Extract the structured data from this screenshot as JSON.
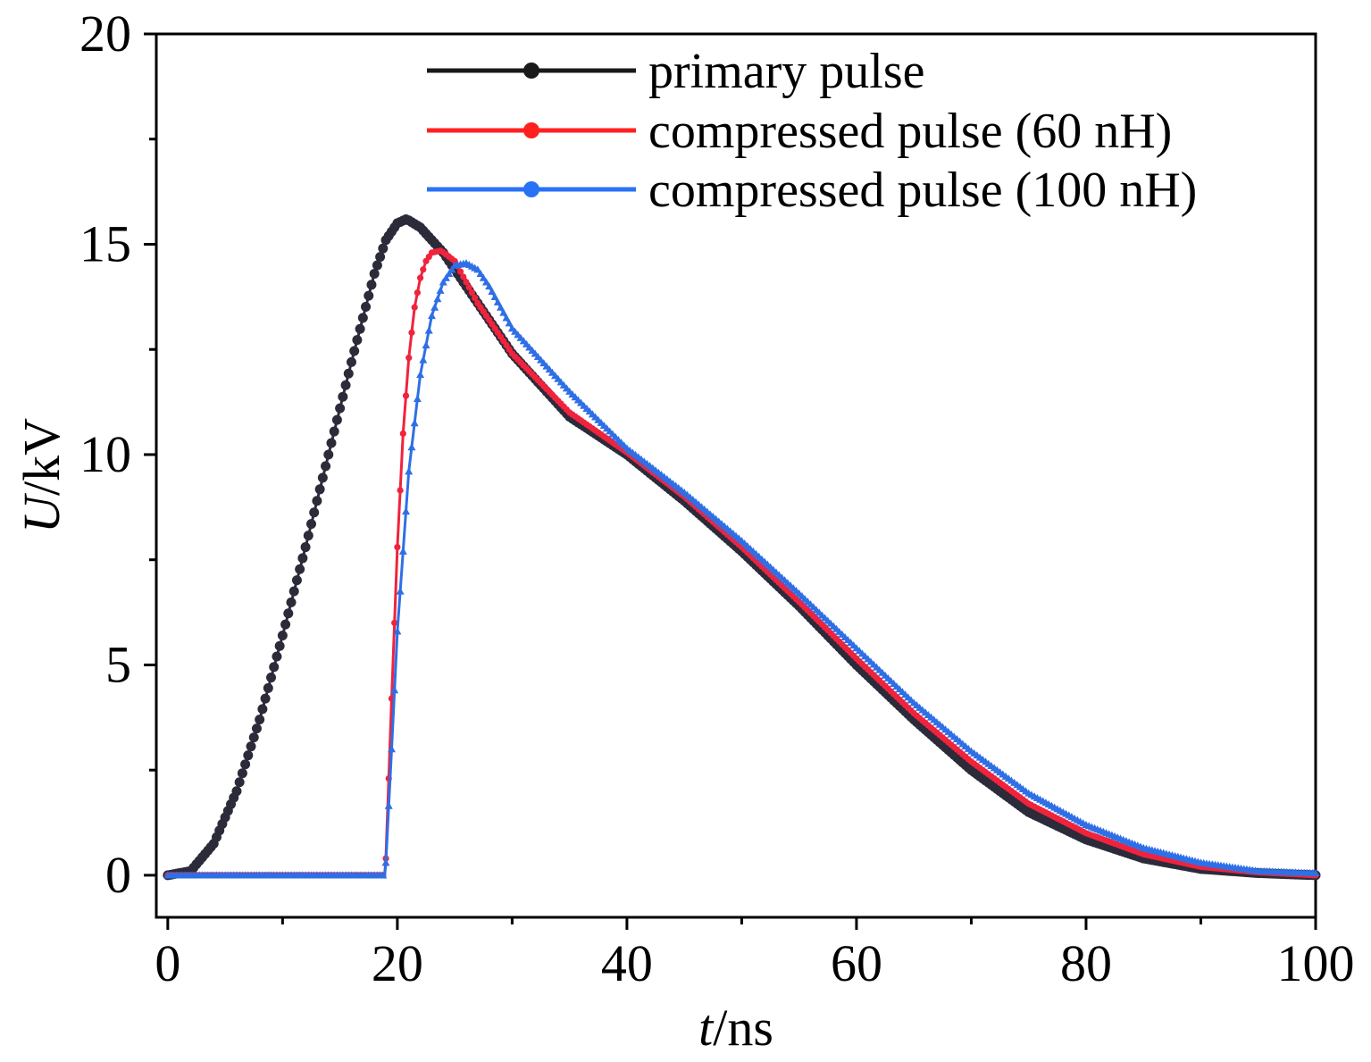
{
  "chart_data": {
    "type": "line",
    "xlabel": {
      "italic": "t",
      "rest": "/ns"
    },
    "ylabel": {
      "italic": "U",
      "rest": "/kV"
    },
    "xlim": [
      -1,
      100
    ],
    "ylim": [
      -1,
      20
    ],
    "xticks": [
      "0",
      "20",
      "40",
      "60",
      "80",
      "100"
    ],
    "yticks": [
      "0",
      "5",
      "10",
      "15",
      "20"
    ],
    "grid": false,
    "legend_position": "top-right",
    "series": [
      {
        "name": "primary pulse",
        "color": "#2b2b3a",
        "legend_color": "#1a1a1a",
        "marker": "circle",
        "x": [
          0,
          2,
          4,
          6,
          8,
          10,
          12,
          14,
          16,
          18,
          19,
          20,
          20.8,
          22,
          24,
          26,
          28,
          30,
          35,
          40,
          45,
          50,
          55,
          60,
          65,
          70,
          75,
          80,
          85,
          90,
          95,
          100
        ],
        "y": [
          0,
          0.1,
          0.75,
          2.0,
          3.7,
          5.7,
          7.8,
          10.0,
          12.2,
          14.3,
          15.1,
          15.5,
          15.6,
          15.4,
          14.8,
          14.0,
          13.2,
          12.4,
          10.9,
          10.0,
          8.9,
          7.7,
          6.4,
          5.0,
          3.7,
          2.5,
          1.5,
          0.85,
          0.4,
          0.15,
          0.05,
          0.0
        ]
      },
      {
        "name": "compressed pulse (60 nH)",
        "color": "#f0233d",
        "legend_color": "#ff2020",
        "marker": "circle",
        "x": [
          0,
          18,
          18.9,
          19.0,
          19.5,
          20,
          20.5,
          21,
          21.5,
          22,
          22.5,
          23,
          23.8,
          25,
          27,
          30,
          35,
          40,
          45,
          50,
          55,
          60,
          65,
          70,
          75,
          80,
          85,
          90,
          95,
          100
        ],
        "y": [
          0,
          0,
          0,
          0.4,
          4.2,
          7.8,
          10.5,
          12.3,
          13.5,
          14.2,
          14.6,
          14.8,
          14.85,
          14.6,
          13.6,
          12.4,
          11.0,
          10.05,
          9.0,
          7.8,
          6.5,
          5.15,
          3.85,
          2.7,
          1.7,
          1.0,
          0.5,
          0.2,
          0.07,
          0.0
        ]
      },
      {
        "name": "compressed pulse (100 nH)",
        "color": "#2f6fe6",
        "legend_color": "#2a72f5",
        "marker": "triangle",
        "x": [
          0,
          18,
          18.9,
          19.0,
          19.5,
          20,
          21,
          22,
          23,
          24,
          25,
          26,
          27,
          28,
          30,
          35,
          40,
          45,
          50,
          55,
          60,
          65,
          70,
          75,
          80,
          85,
          90,
          95,
          100
        ],
        "y": [
          0,
          0,
          0,
          0.3,
          3.0,
          5.8,
          9.6,
          11.9,
          13.3,
          14.1,
          14.5,
          14.55,
          14.4,
          14.0,
          13.0,
          11.5,
          10.15,
          9.1,
          7.95,
          6.7,
          5.4,
          4.1,
          2.95,
          1.95,
          1.2,
          0.65,
          0.3,
          0.1,
          0.05
        ]
      }
    ]
  }
}
